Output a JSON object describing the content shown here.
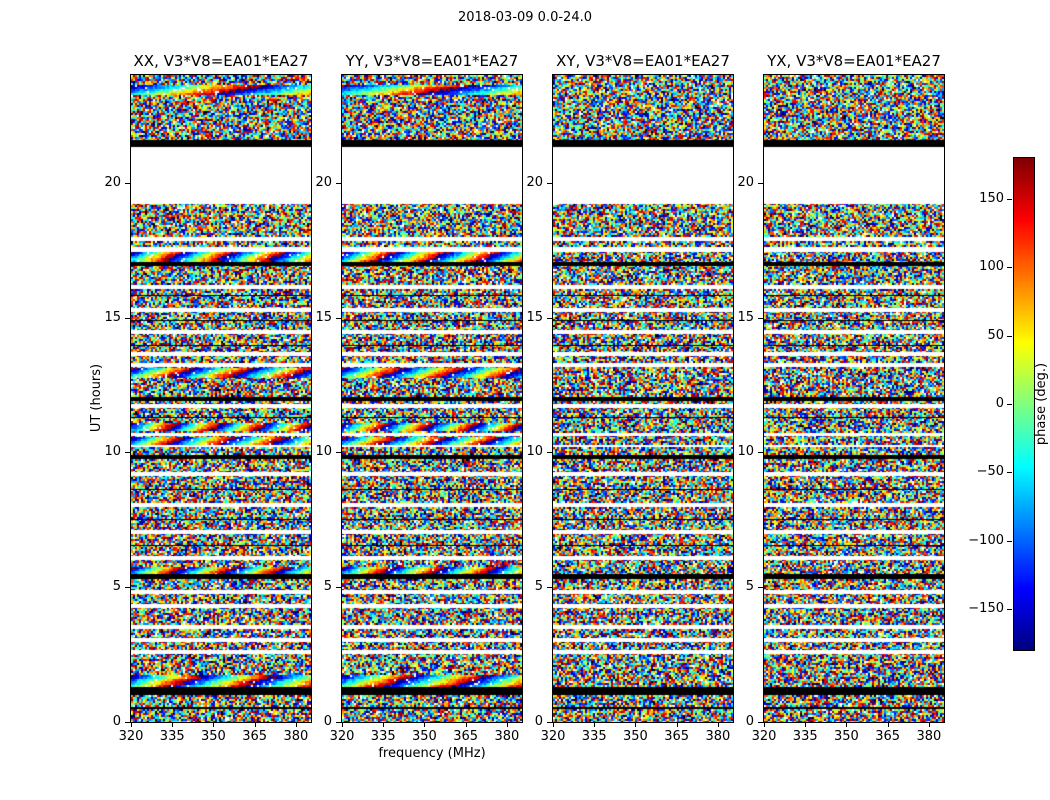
{
  "chart_data": {
    "type": "heatmap",
    "title": "2018-03-09 0.0-24.0",
    "xlabel": "frequency (MHz)",
    "ylabel": "UT (hours)",
    "x_range_mhz": [
      320,
      385.5
    ],
    "x_ticks": [
      320,
      335,
      350,
      365,
      380
    ],
    "y_range_hours": [
      0,
      24
    ],
    "y_ticks": [
      0,
      5,
      10,
      15,
      20
    ],
    "panels": [
      {
        "pol": "XX",
        "title": "XX, V3*V8=EA01*EA27",
        "shows_coherent_bands": true
      },
      {
        "pol": "YY",
        "title": "YY, V3*V8=EA01*EA27",
        "shows_coherent_bands": true
      },
      {
        "pol": "XY",
        "title": "XY, V3*V8=EA01*EA27",
        "shows_coherent_bands": false
      },
      {
        "pol": "YX",
        "title": "YX, V3*V8=EA01*EA27",
        "shows_coherent_bands": false
      }
    ],
    "colorbar": {
      "label": "phase (deg.)",
      "range_deg": [
        -180,
        180
      ],
      "ticks": [
        150,
        100,
        50,
        0,
        -50,
        -100,
        -150
      ],
      "colormap": "jet"
    },
    "background": "random-phase-noise",
    "bands": [
      [
        "sweep",
        23.63,
        23.3,
        1.4
      ],
      [
        "sweep",
        17.42,
        17.08,
        3.5
      ],
      [
        "sweep",
        13.13,
        12.78,
        3.0
      ],
      [
        "sweep",
        11.08,
        10.78,
        4.0
      ],
      [
        "sweep",
        10.57,
        10.32,
        3.5
      ],
      [
        "sweep",
        5.74,
        5.5,
        3.5
      ],
      [
        "sweep",
        1.74,
        1.28,
        2.5
      ],
      [
        "white",
        21.33,
        19.22
      ],
      [
        "white",
        17.99,
        17.85
      ],
      [
        "white",
        17.62,
        17.44
      ],
      [
        "white",
        16.21,
        16.06
      ],
      [
        "white",
        15.36,
        15.21
      ],
      [
        "white",
        14.54,
        14.39
      ],
      [
        "white",
        13.72,
        13.58
      ],
      [
        "white",
        13.32,
        13.17
      ],
      [
        "white",
        11.8,
        11.66
      ],
      [
        "white",
        10.72,
        10.61
      ],
      [
        "white",
        10.26,
        10.2
      ],
      [
        "white",
        9.27,
        9.13
      ],
      [
        "white",
        8.12,
        7.98
      ],
      [
        "white",
        7.12,
        6.98
      ],
      [
        "white",
        6.16,
        6.01
      ],
      [
        "white",
        4.9,
        4.76
      ],
      [
        "white",
        4.38,
        4.24
      ],
      [
        "white",
        3.6,
        3.46
      ],
      [
        "white",
        3.12,
        2.98
      ],
      [
        "white",
        2.67,
        2.53
      ],
      [
        "black",
        21.59,
        21.34
      ],
      [
        "black",
        17.06,
        16.93
      ],
      [
        "black",
        15.85,
        15.81
      ],
      [
        "black",
        14.92,
        14.88
      ],
      [
        "black",
        13.99,
        13.95
      ],
      [
        "black",
        12.06,
        11.92
      ],
      [
        "black",
        11.32,
        11.28
      ],
      [
        "black",
        9.9,
        9.76
      ],
      [
        "black",
        8.65,
        8.61
      ],
      [
        "black",
        7.54,
        7.5
      ],
      [
        "black",
        6.58,
        6.54
      ],
      [
        "black",
        5.49,
        5.31
      ],
      [
        "black",
        1.28,
        1.02
      ],
      [
        "black",
        0.54,
        0.49
      ]
    ]
  }
}
